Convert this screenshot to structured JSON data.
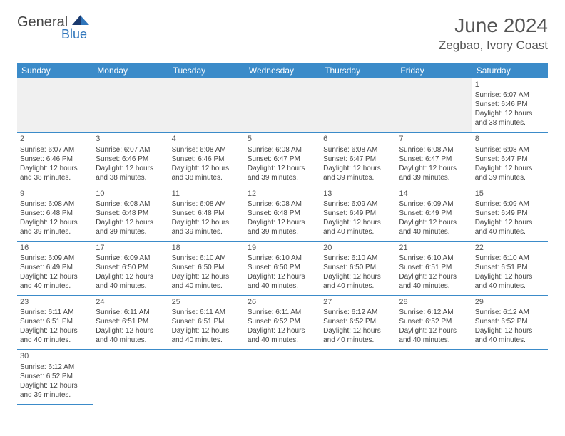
{
  "brand": {
    "part1": "General",
    "part2": "Blue"
  },
  "header": {
    "title": "June 2024",
    "location": "Zegbao, Ivory Coast"
  },
  "colors": {
    "header_bg": "#3b8bc9",
    "header_text": "#ffffff",
    "brand_blue": "#2f75bb",
    "cell_border": "#3b8bc9",
    "lead_empty_bg": "#f0f0f0",
    "text": "#444444"
  },
  "calendar": {
    "day_names": [
      "Sunday",
      "Monday",
      "Tuesday",
      "Wednesday",
      "Thursday",
      "Friday",
      "Saturday"
    ],
    "leading_empty": 6,
    "trailing_empty": 6,
    "days": [
      {
        "n": "1",
        "sr": "6:07 AM",
        "ss": "6:46 PM",
        "dl": "12 hours and 38 minutes."
      },
      {
        "n": "2",
        "sr": "6:07 AM",
        "ss": "6:46 PM",
        "dl": "12 hours and 38 minutes."
      },
      {
        "n": "3",
        "sr": "6:07 AM",
        "ss": "6:46 PM",
        "dl": "12 hours and 38 minutes."
      },
      {
        "n": "4",
        "sr": "6:08 AM",
        "ss": "6:46 PM",
        "dl": "12 hours and 38 minutes."
      },
      {
        "n": "5",
        "sr": "6:08 AM",
        "ss": "6:47 PM",
        "dl": "12 hours and 39 minutes."
      },
      {
        "n": "6",
        "sr": "6:08 AM",
        "ss": "6:47 PM",
        "dl": "12 hours and 39 minutes."
      },
      {
        "n": "7",
        "sr": "6:08 AM",
        "ss": "6:47 PM",
        "dl": "12 hours and 39 minutes."
      },
      {
        "n": "8",
        "sr": "6:08 AM",
        "ss": "6:47 PM",
        "dl": "12 hours and 39 minutes."
      },
      {
        "n": "9",
        "sr": "6:08 AM",
        "ss": "6:48 PM",
        "dl": "12 hours and 39 minutes."
      },
      {
        "n": "10",
        "sr": "6:08 AM",
        "ss": "6:48 PM",
        "dl": "12 hours and 39 minutes."
      },
      {
        "n": "11",
        "sr": "6:08 AM",
        "ss": "6:48 PM",
        "dl": "12 hours and 39 minutes."
      },
      {
        "n": "12",
        "sr": "6:08 AM",
        "ss": "6:48 PM",
        "dl": "12 hours and 39 minutes."
      },
      {
        "n": "13",
        "sr": "6:09 AM",
        "ss": "6:49 PM",
        "dl": "12 hours and 40 minutes."
      },
      {
        "n": "14",
        "sr": "6:09 AM",
        "ss": "6:49 PM",
        "dl": "12 hours and 40 minutes."
      },
      {
        "n": "15",
        "sr": "6:09 AM",
        "ss": "6:49 PM",
        "dl": "12 hours and 40 minutes."
      },
      {
        "n": "16",
        "sr": "6:09 AM",
        "ss": "6:49 PM",
        "dl": "12 hours and 40 minutes."
      },
      {
        "n": "17",
        "sr": "6:09 AM",
        "ss": "6:50 PM",
        "dl": "12 hours and 40 minutes."
      },
      {
        "n": "18",
        "sr": "6:10 AM",
        "ss": "6:50 PM",
        "dl": "12 hours and 40 minutes."
      },
      {
        "n": "19",
        "sr": "6:10 AM",
        "ss": "6:50 PM",
        "dl": "12 hours and 40 minutes."
      },
      {
        "n": "20",
        "sr": "6:10 AM",
        "ss": "6:50 PM",
        "dl": "12 hours and 40 minutes."
      },
      {
        "n": "21",
        "sr": "6:10 AM",
        "ss": "6:51 PM",
        "dl": "12 hours and 40 minutes."
      },
      {
        "n": "22",
        "sr": "6:10 AM",
        "ss": "6:51 PM",
        "dl": "12 hours and 40 minutes."
      },
      {
        "n": "23",
        "sr": "6:11 AM",
        "ss": "6:51 PM",
        "dl": "12 hours and 40 minutes."
      },
      {
        "n": "24",
        "sr": "6:11 AM",
        "ss": "6:51 PM",
        "dl": "12 hours and 40 minutes."
      },
      {
        "n": "25",
        "sr": "6:11 AM",
        "ss": "6:51 PM",
        "dl": "12 hours and 40 minutes."
      },
      {
        "n": "26",
        "sr": "6:11 AM",
        "ss": "6:52 PM",
        "dl": "12 hours and 40 minutes."
      },
      {
        "n": "27",
        "sr": "6:12 AM",
        "ss": "6:52 PM",
        "dl": "12 hours and 40 minutes."
      },
      {
        "n": "28",
        "sr": "6:12 AM",
        "ss": "6:52 PM",
        "dl": "12 hours and 40 minutes."
      },
      {
        "n": "29",
        "sr": "6:12 AM",
        "ss": "6:52 PM",
        "dl": "12 hours and 40 minutes."
      },
      {
        "n": "30",
        "sr": "6:12 AM",
        "ss": "6:52 PM",
        "dl": "12 hours and 39 minutes."
      }
    ],
    "labels": {
      "sunrise": "Sunrise:",
      "sunset": "Sunset:",
      "daylight": "Daylight:"
    }
  }
}
